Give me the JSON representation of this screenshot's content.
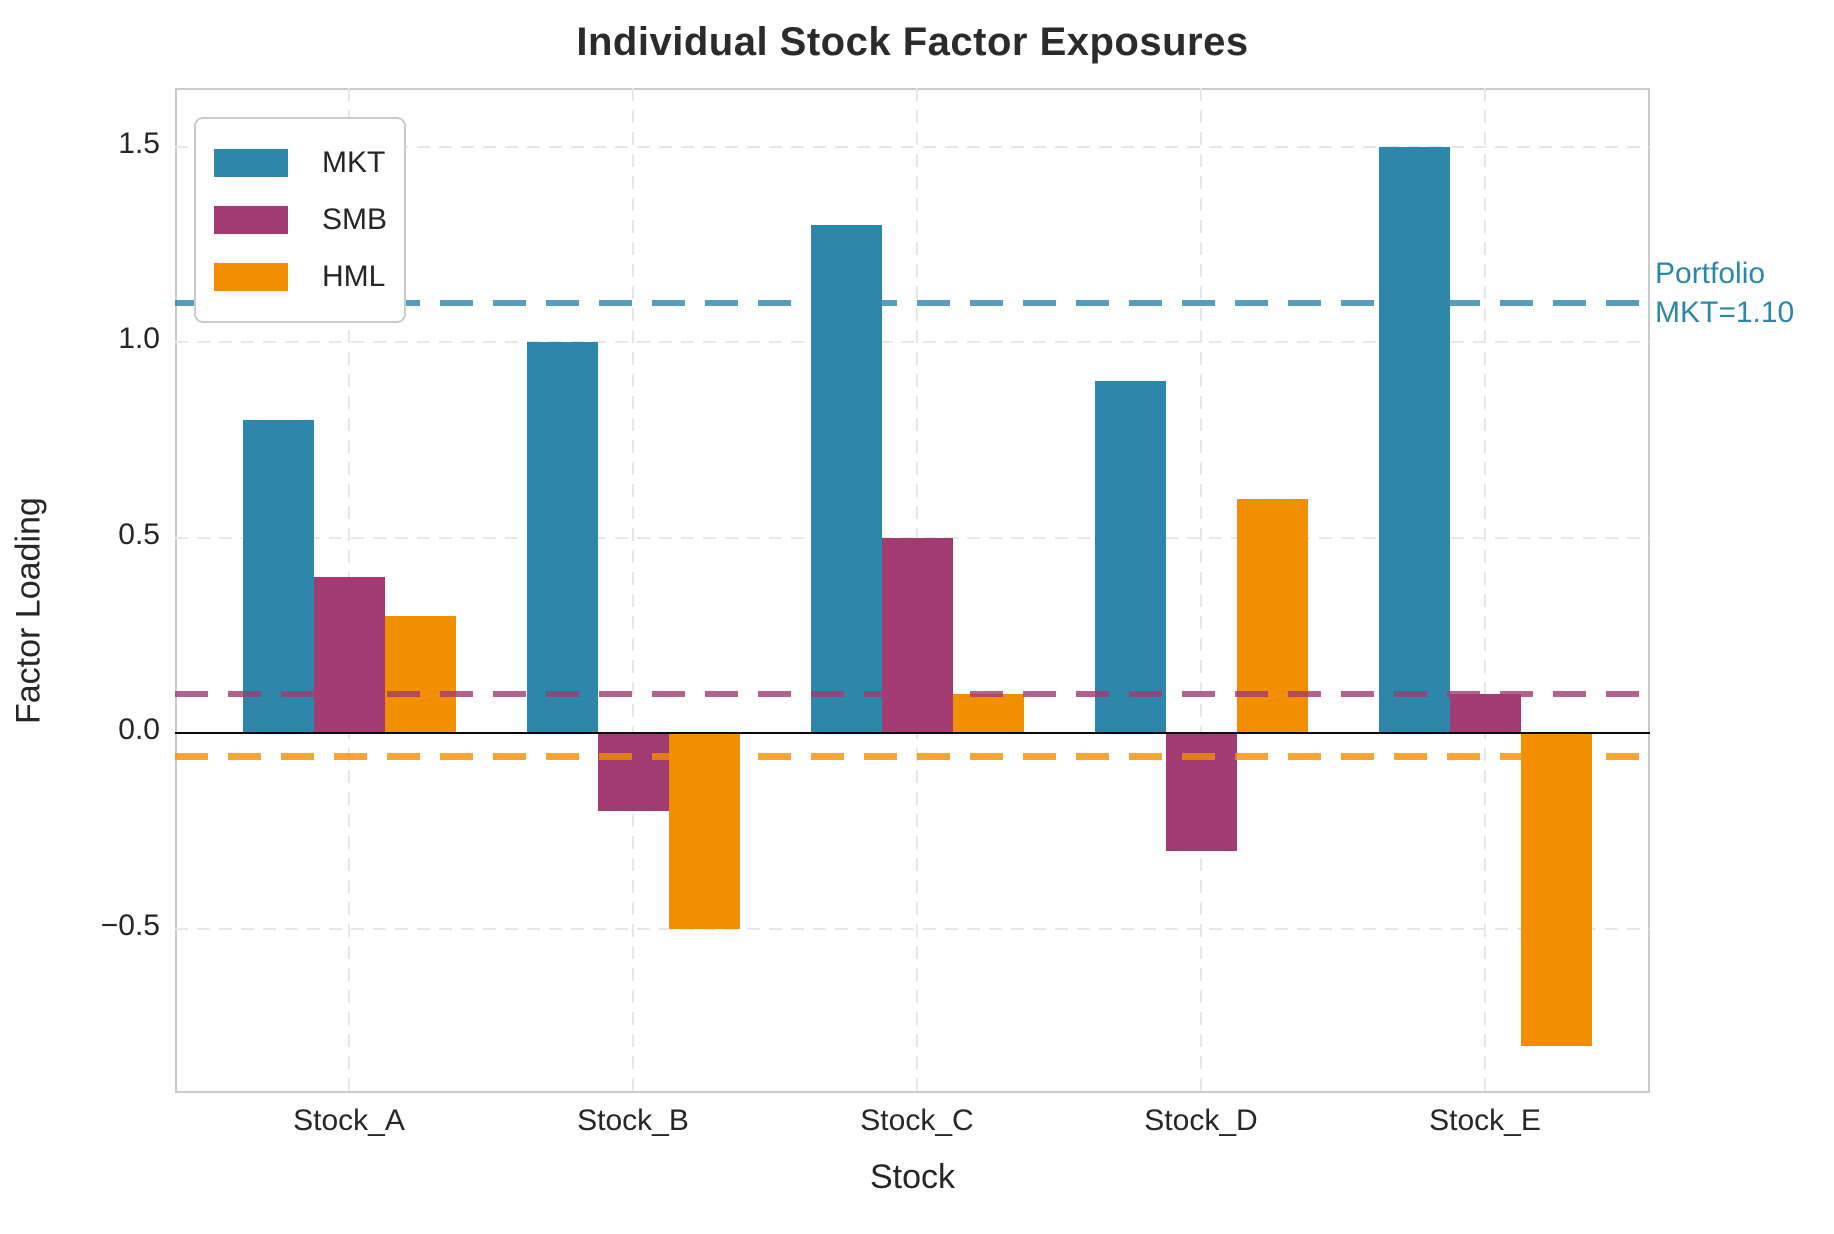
{
  "chart_data": {
    "type": "bar",
    "title": "Individual Stock Factor Exposures",
    "xlabel": "Stock",
    "ylabel": "Factor Loading",
    "categories": [
      "Stock_A",
      "Stock_B",
      "Stock_C",
      "Stock_D",
      "Stock_E"
    ],
    "series": [
      {
        "name": "MKT",
        "color": "#2E86AB",
        "values": [
          0.8,
          1.0,
          1.3,
          0.9,
          1.5
        ]
      },
      {
        "name": "SMB",
        "color": "#A23B72",
        "values": [
          0.4,
          -0.2,
          0.5,
          -0.3,
          0.1
        ]
      },
      {
        "name": "HML",
        "color": "#F18F01",
        "values": [
          0.3,
          -0.5,
          0.1,
          0.6,
          -0.8
        ]
      }
    ],
    "yticks": [
      {
        "value": 1.5,
        "label": "1.5"
      },
      {
        "value": 1.0,
        "label": "1.0"
      },
      {
        "value": 0.5,
        "label": "0.5"
      },
      {
        "value": 0.0,
        "label": "0.0"
      },
      {
        "value": -0.5,
        "label": "−0.5"
      }
    ],
    "ylim": [
      -0.92,
      1.65
    ],
    "grid": true,
    "legend_position": "upper left",
    "reference_lines": [
      {
        "name": "portfolio-mkt",
        "value": 1.1,
        "color": "#2E86AB",
        "style": "dashed"
      },
      {
        "name": "portfolio-smb",
        "value": 0.1,
        "color": "#A23B72",
        "style": "dashed"
      },
      {
        "name": "portfolio-hml",
        "value": -0.06,
        "color": "#F18F01",
        "style": "dashed"
      }
    ],
    "annotation": {
      "line1": "Portfolio",
      "line2": "MKT=1.10",
      "color": "#2E86AB"
    }
  }
}
